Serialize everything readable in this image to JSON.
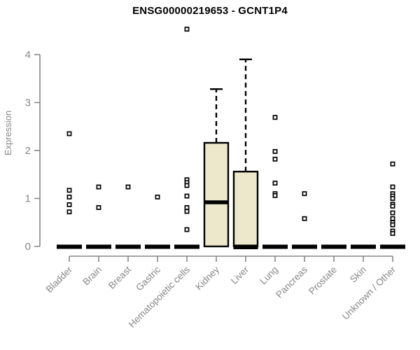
{
  "chart_data": {
    "type": "boxplot",
    "title": "ENSG00000219653 - GCNT1P4",
    "ylabel": "Expression",
    "xlabel": "",
    "ylim": [
      0,
      4.6
    ],
    "yticks": [
      0,
      1,
      2,
      3,
      4
    ],
    "grid": false,
    "legend": "none",
    "x_label_rotation": -45,
    "categories": [
      "Bladder",
      "Brain",
      "Breast",
      "Gastric",
      "Hematopoietic cells",
      "Kidney",
      "Liver",
      "Lung",
      "Pancreas",
      "Prostate",
      "Skin",
      "Unknown / Other"
    ],
    "series": [
      {
        "category": "Bladder",
        "q1": 0,
        "median": 0,
        "q3": 0,
        "whisker_low": 0,
        "whisker_high": 0,
        "outliers": [
          2.35,
          1.17,
          1.03,
          0.87,
          0.72
        ]
      },
      {
        "category": "Brain",
        "q1": 0,
        "median": 0,
        "q3": 0,
        "whisker_low": 0,
        "whisker_high": 0,
        "outliers": [
          1.24,
          0.81
        ]
      },
      {
        "category": "Breast",
        "q1": 0,
        "median": 0,
        "q3": 0,
        "whisker_low": 0,
        "whisker_high": 0,
        "outliers": [
          1.24
        ]
      },
      {
        "category": "Gastric",
        "q1": 0,
        "median": 0,
        "q3": 0,
        "whisker_low": 0,
        "whisker_high": 0,
        "outliers": [
          1.03
        ]
      },
      {
        "category": "Hematopoietic cells",
        "q1": 0,
        "median": 0,
        "q3": 0,
        "whisker_low": 0,
        "whisker_high": 0,
        "outliers": [
          4.53,
          1.39,
          1.33,
          1.27,
          1.05,
          0.81,
          0.73,
          0.35
        ]
      },
      {
        "category": "Kidney",
        "q1": 0,
        "median": 0.92,
        "q3": 2.16,
        "whisker_low": 0,
        "whisker_high": 3.28,
        "outliers": []
      },
      {
        "category": "Liver",
        "q1": 0,
        "median": 0,
        "q3": 1.56,
        "whisker_low": 0,
        "whisker_high": 3.9,
        "outliers": []
      },
      {
        "category": "Lung",
        "q1": 0,
        "median": 0,
        "q3": 0,
        "whisker_low": 0,
        "whisker_high": 0,
        "outliers": [
          2.69,
          1.98,
          1.82,
          1.32,
          1.1,
          1.06
        ]
      },
      {
        "category": "Pancreas",
        "q1": 0,
        "median": 0,
        "q3": 0,
        "whisker_low": 0,
        "whisker_high": 0,
        "outliers": [
          1.1,
          0.58
        ]
      },
      {
        "category": "Prostate",
        "q1": 0,
        "median": 0,
        "q3": 0,
        "whisker_low": 0,
        "whisker_high": 0,
        "outliers": []
      },
      {
        "category": "Skin",
        "q1": 0,
        "median": 0,
        "q3": 0,
        "whisker_low": 0,
        "whisker_high": 0,
        "outliers": []
      },
      {
        "category": "Unknown / Other",
        "q1": 0,
        "median": 0,
        "q3": 0,
        "whisker_low": 0,
        "whisker_high": 0,
        "outliers": [
          1.72,
          1.24,
          1.1,
          1.05,
          1.0,
          0.88,
          0.84,
          0.7,
          0.58,
          0.5,
          0.45,
          0.32,
          0.27
        ]
      }
    ],
    "style": {
      "box_fill": "#EDE7CC",
      "box_stroke": "#000000",
      "median_color": "#000000",
      "whisker_color": "#000000",
      "outlier_color": "#000000",
      "axis_color": "#878787",
      "tick_label_color": "#878787",
      "title_color": "#000000",
      "background": "#FFFFFF"
    }
  }
}
